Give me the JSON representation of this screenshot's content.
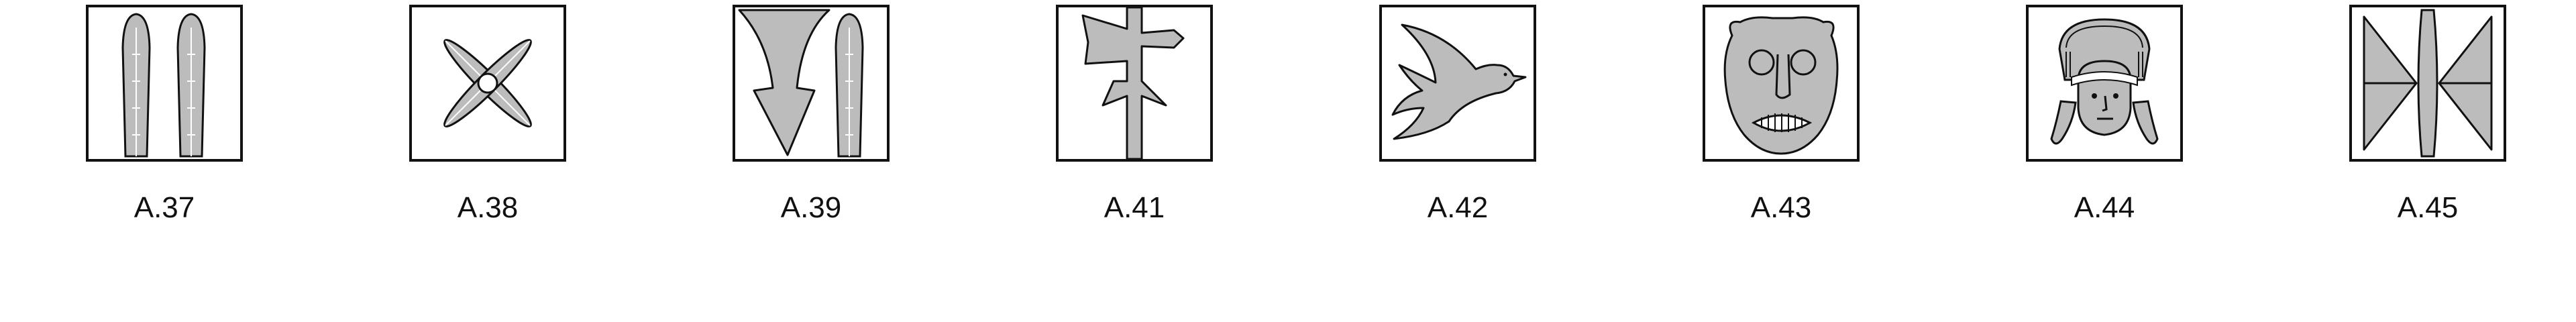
{
  "colors": {
    "fill": "#bcbcbc",
    "stroke": "#111111",
    "background": "#ffffff"
  },
  "glyphs": [
    {
      "caption": "A.37",
      "icon": "two-leaves-icon"
    },
    {
      "caption": "A.38",
      "icon": "four-petal-cross-icon"
    },
    {
      "caption": "A.39",
      "icon": "arrowhead-and-leaf-icon"
    },
    {
      "caption": "A.41",
      "icon": "post-and-flag-icon"
    },
    {
      "caption": "A.42",
      "icon": "bird-icon"
    },
    {
      "caption": "A.43",
      "icon": "mask-face-icon"
    },
    {
      "caption": "A.44",
      "icon": "sphinx-head-icon"
    },
    {
      "caption": "A.45",
      "icon": "double-axe-icon"
    }
  ]
}
